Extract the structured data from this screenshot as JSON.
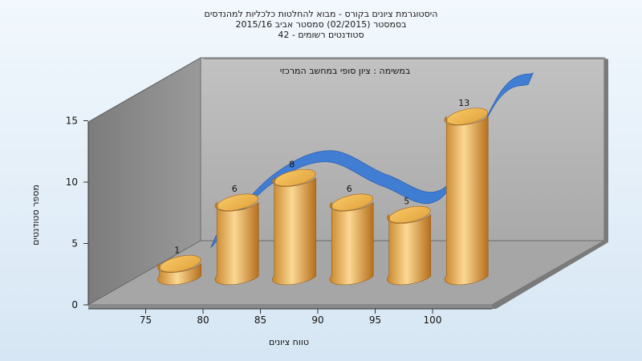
{
  "header": {
    "title_line1": "היסטוגרמת ציונים בקורס - מבוא להחלטות כלכליות למהנדסים",
    "title_line2": "בסמסטר  (02/2015)  סמסטר אביב 2015/16",
    "title_line3": "סטודנטים רשומים - 42"
  },
  "chart_data": {
    "type": "bar",
    "categories": [
      "75",
      "80",
      "85",
      "90",
      "95",
      "100"
    ],
    "values": [
      1,
      6,
      8,
      6,
      5,
      13
    ],
    "trend": [
      1,
      6,
      8,
      6,
      5,
      13
    ],
    "annotation": "במשימה : ציון סופי במחשב המרכזי",
    "xlabel": "טווח ציונים",
    "ylabel": "מספר סטודנטים",
    "yticks": [
      0,
      5,
      10,
      15
    ],
    "ylim": [
      0,
      15
    ],
    "grid": false,
    "legend": "none",
    "colors": {
      "bar_light": "#f8d58c",
      "bar_mid": "#e5a84a",
      "bar_dark": "#b8731f",
      "trend": "#3a7bd5",
      "back_wall": "#b4b4b4",
      "side_wall": "#8f8f8f",
      "floor": "#a8a8a8"
    }
  }
}
